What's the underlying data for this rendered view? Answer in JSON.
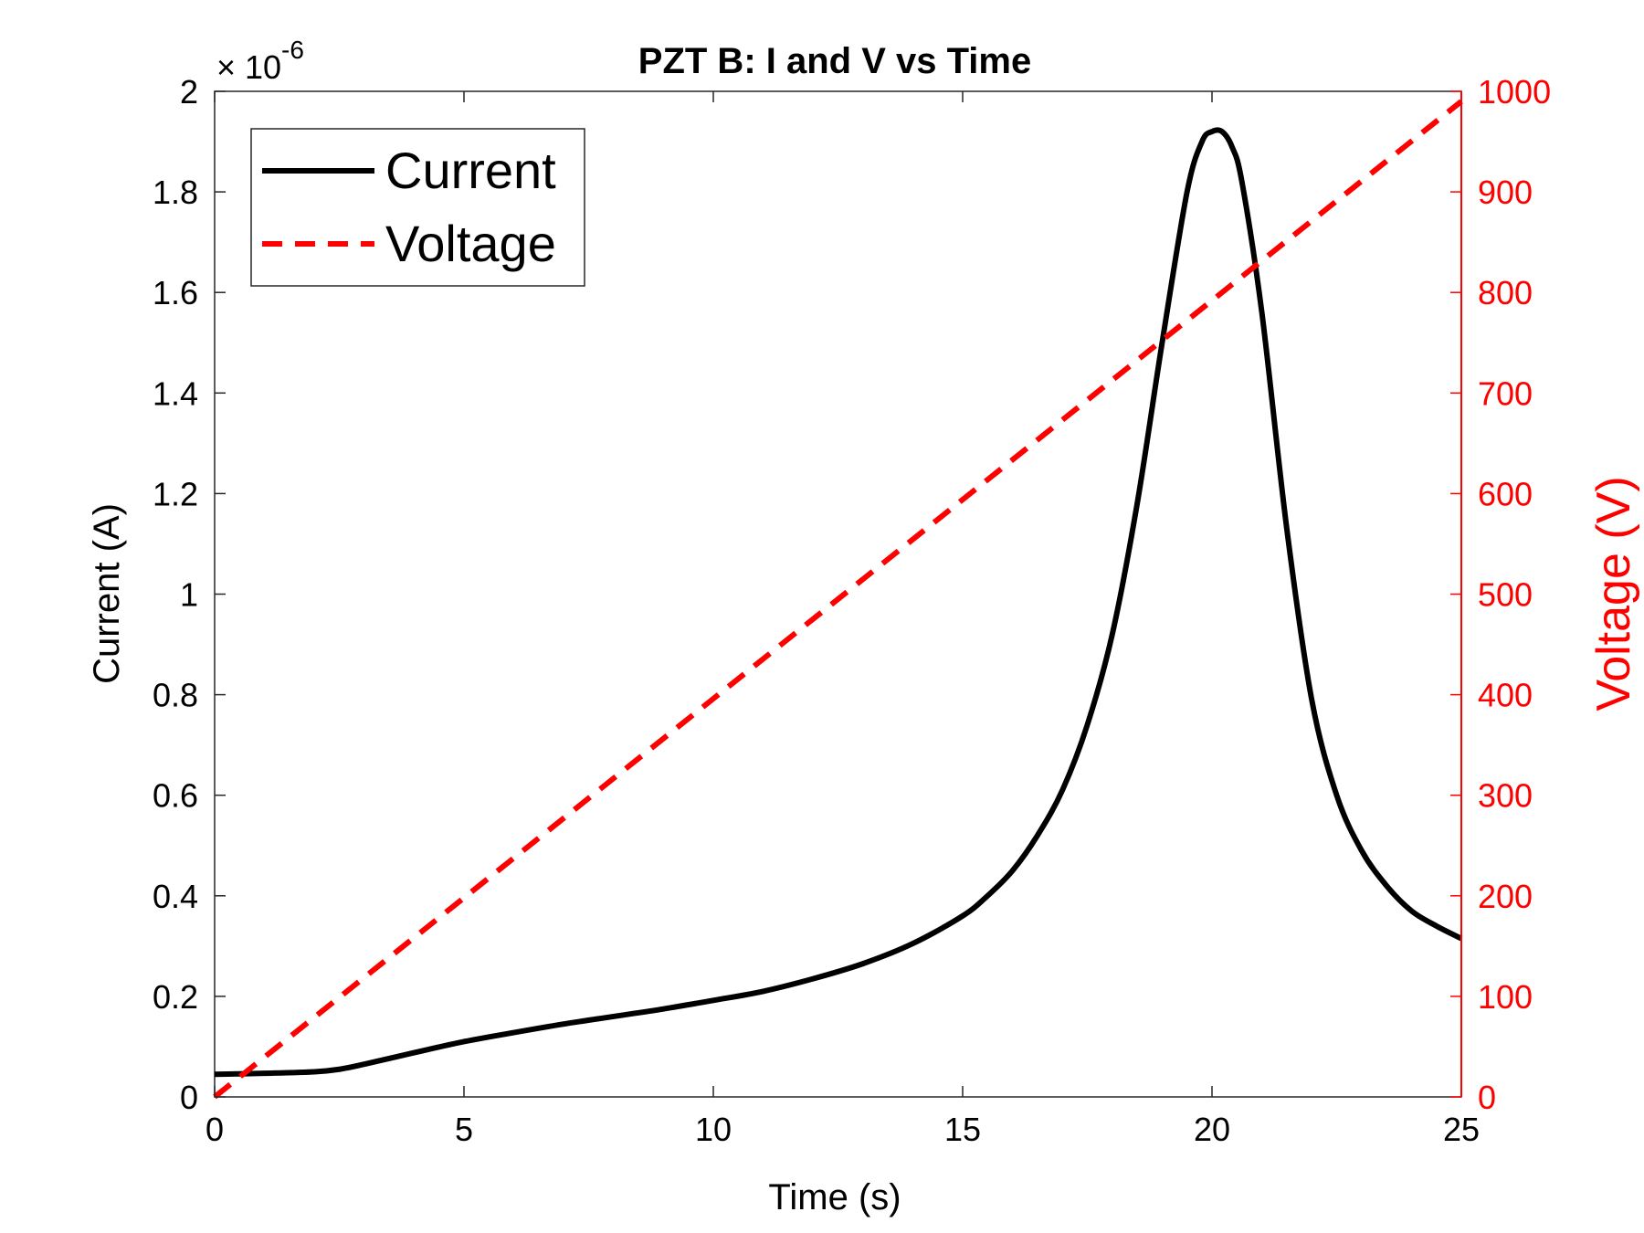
{
  "chart_data": {
    "type": "line",
    "title": "PZT B: I and V vs Time",
    "xlabel": "Time (s)",
    "ylabel_left": "Current (A)",
    "ylabel_right": "Voltage (V)",
    "left_exponent_base": "10",
    "left_exponent_power": "-6",
    "xlim": [
      0,
      25
    ],
    "ylim_left": [
      0,
      2
    ],
    "ylim_right": [
      0,
      1000
    ],
    "x_ticks": [
      "0",
      "5",
      "10",
      "15",
      "20",
      "25"
    ],
    "y_left_ticks": [
      "0",
      "0.2",
      "0.4",
      "0.6",
      "0.8",
      "1",
      "1.2",
      "1.4",
      "1.6",
      "1.8",
      "2"
    ],
    "y_right_ticks": [
      "0",
      "100",
      "200",
      "300",
      "400",
      "500",
      "600",
      "700",
      "800",
      "900",
      "1000"
    ],
    "grid": false,
    "legend_position": "top-left",
    "colors": {
      "current": "#000000",
      "voltage": "#ff0000",
      "right_axis": "#ff0000"
    },
    "series": [
      {
        "name": "Current",
        "axis": "left",
        "style": "solid",
        "x": [
          0,
          1,
          2,
          2.5,
          3,
          4,
          5,
          6,
          7,
          8,
          9,
          10,
          11,
          12,
          13,
          14,
          15,
          15.5,
          16,
          16.5,
          17,
          17.5,
          18,
          18.5,
          19,
          19.5,
          19.8,
          20,
          20.2,
          20.4,
          20.6,
          21,
          21.5,
          22,
          22.5,
          23,
          23.5,
          24,
          24.5,
          25
        ],
        "y": [
          0.045,
          0.047,
          0.05,
          0.055,
          0.065,
          0.088,
          0.11,
          0.128,
          0.145,
          0.16,
          0.175,
          0.192,
          0.21,
          0.235,
          0.265,
          0.305,
          0.36,
          0.4,
          0.45,
          0.52,
          0.61,
          0.74,
          0.92,
          1.18,
          1.5,
          1.8,
          1.9,
          1.92,
          1.92,
          1.89,
          1.82,
          1.56,
          1.13,
          0.79,
          0.6,
          0.49,
          0.42,
          0.37,
          0.34,
          0.315
        ]
      },
      {
        "name": "Voltage",
        "axis": "right",
        "style": "dashed",
        "x": [
          0,
          25
        ],
        "y": [
          0,
          990
        ]
      }
    ]
  }
}
